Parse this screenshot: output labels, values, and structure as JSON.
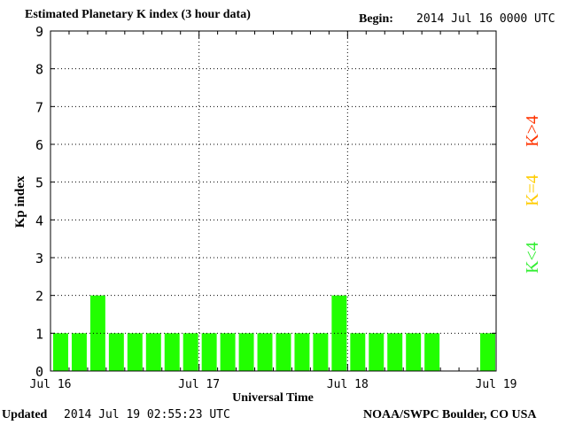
{
  "header": {
    "title": "Estimated Planetary K index (3 hour data)",
    "begin_label": "Begin:",
    "begin_value": "2014 Jul 16 0000 UTC"
  },
  "footer": {
    "updated_label": "Updated",
    "updated_value": "2014 Jul 19 02:55:23 UTC",
    "source": "NOAA/SWPC Boulder, CO USA"
  },
  "legend": {
    "high": {
      "label": "K>4",
      "color": "#ff3300"
    },
    "equal": {
      "label": "K=4",
      "color": "#ffcc00"
    },
    "low": {
      "label": "K<4",
      "color": "#33ee33"
    }
  },
  "colors": {
    "bar": "#22ff00",
    "axis": "#000000",
    "grid": "#000000"
  },
  "chart_data": {
    "type": "bar",
    "title": "Estimated Planetary K index (3 hour data)",
    "xlabel": "Universal Time",
    "ylabel": "Kp index",
    "ylim": [
      0,
      9
    ],
    "yticks": [
      "0",
      "1",
      "2",
      "3",
      "4",
      "5",
      "6",
      "7",
      "8",
      "9"
    ],
    "xticks": [
      "Jul 16",
      "Jul 17",
      "Jul 18",
      "Jul 19"
    ],
    "slots_per_day": 8,
    "grid": true,
    "grid_style": "dotted",
    "values": [
      1,
      1,
      2,
      1,
      1,
      1,
      1,
      1,
      1,
      1,
      1,
      1,
      1,
      1,
      1,
      2,
      1,
      1,
      1,
      1,
      1,
      null,
      null,
      1
    ]
  }
}
